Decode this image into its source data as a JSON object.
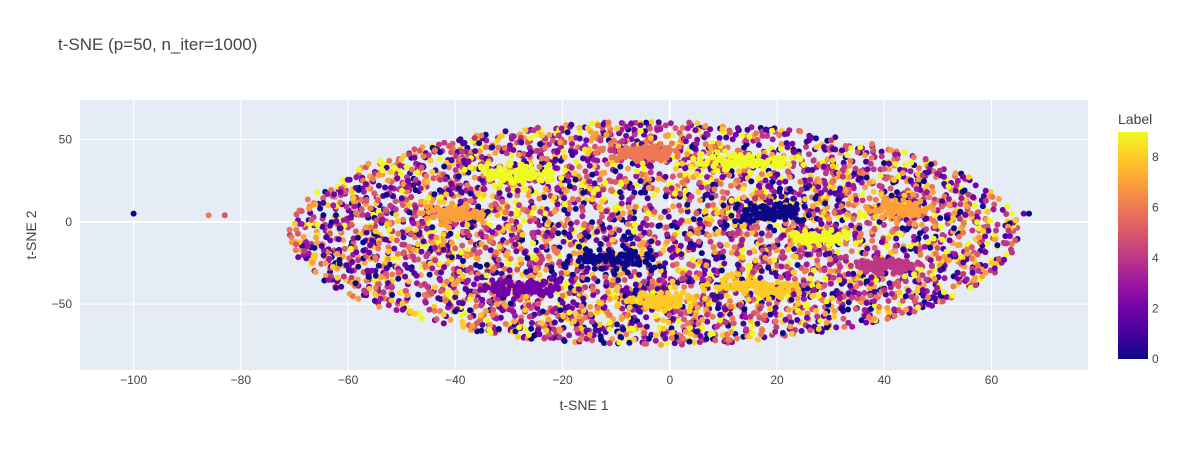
{
  "chart_data": {
    "type": "scatter",
    "title": "t-SNE (p=50, n_iter=1000)",
    "xlabel": "t-SNE 1",
    "ylabel": "t-SNE 2",
    "xlim": [
      -110,
      78
    ],
    "ylim": [
      -90,
      74
    ],
    "x_ticks": [
      -100,
      -80,
      -60,
      -40,
      -20,
      0,
      20,
      40,
      60
    ],
    "y_ticks": [
      -50,
      0,
      50
    ],
    "x_tick_labels": [
      "−100",
      "−80",
      "−60",
      "−40",
      "−20",
      "0",
      "20",
      "40",
      "60"
    ],
    "y_tick_labels": [
      "−50",
      "0",
      "50"
    ],
    "grid": true,
    "colorbar": {
      "title": "Label",
      "min": 0,
      "max": 9,
      "ticks": [
        0,
        2,
        4,
        6,
        8
      ],
      "tick_labels": [
        "0",
        "2",
        "4",
        "6",
        "8"
      ],
      "colorscale": [
        "#0d0887",
        "#46039f",
        "#7201a8",
        "#9c179e",
        "#bd3786",
        "#d8576b",
        "#ed7953",
        "#fb9f3a",
        "#fdca26",
        "#f0f921"
      ]
    },
    "point_cloud": {
      "shape": "ellipse",
      "center": [
        -3,
        -7
      ],
      "radius_x": 68,
      "radius_y": 68,
      "approx_count": 5000
    },
    "outliers": [
      {
        "x": -100,
        "y": 5,
        "label": 0
      },
      {
        "x": -86,
        "y": 4,
        "label": 6
      },
      {
        "x": -83,
        "y": 4,
        "label": 5
      },
      {
        "x": 66,
        "y": 5,
        "label": 2
      },
      {
        "x": 67,
        "y": 5,
        "label": 0
      }
    ],
    "clusters": [
      {
        "label": 9,
        "center": [
          -28,
          29
        ],
        "spread": [
          6,
          5
        ]
      },
      {
        "label": 9,
        "center": [
          13,
          37
        ],
        "spread": [
          8,
          4
        ]
      },
      {
        "label": 8,
        "center": [
          16,
          -40
        ],
        "spread": [
          8,
          5
        ]
      },
      {
        "label": 8,
        "center": [
          -2,
          -48
        ],
        "spread": [
          6,
          4
        ]
      },
      {
        "label": 0,
        "center": [
          -11,
          -22
        ],
        "spread": [
          8,
          6
        ]
      },
      {
        "label": 0,
        "center": [
          18,
          5
        ],
        "spread": [
          6,
          5
        ]
      },
      {
        "label": 6,
        "center": [
          -5,
          42
        ],
        "spread": [
          5,
          4
        ]
      },
      {
        "label": 7,
        "center": [
          -40,
          5
        ],
        "spread": [
          5,
          4
        ]
      },
      {
        "label": 7,
        "center": [
          43,
          8
        ],
        "spread": [
          5,
          4
        ]
      },
      {
        "label": 9,
        "center": [
          28,
          -10
        ],
        "spread": [
          4,
          3
        ]
      },
      {
        "label": 2,
        "center": [
          -28,
          -40
        ],
        "spread": [
          6,
          4
        ]
      },
      {
        "label": 4,
        "center": [
          40,
          -27
        ],
        "spread": [
          5,
          4
        ]
      }
    ]
  }
}
